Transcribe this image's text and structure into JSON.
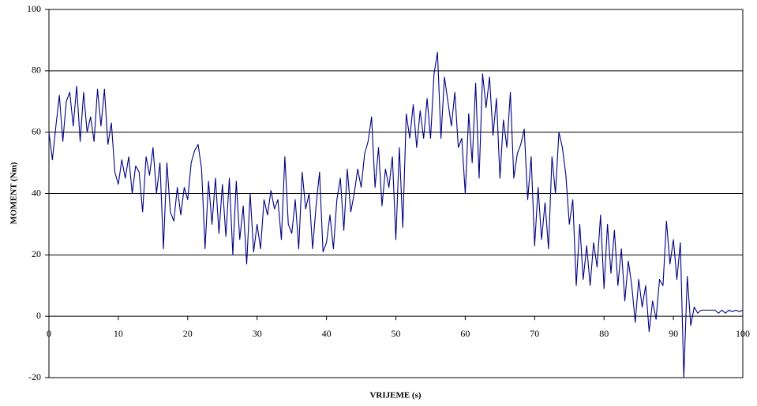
{
  "chart_data": {
    "type": "line",
    "xlabel": "VRIJEME (s)",
    "ylabel": "MOMENT (Nm)",
    "color": "#000080",
    "x": [
      0,
      0.5,
      1,
      1.5,
      2,
      2.5,
      3,
      3.5,
      4,
      4.5,
      5,
      5.5,
      6,
      6.5,
      7,
      7.5,
      8,
      8.5,
      9,
      9.5,
      10,
      10.5,
      11,
      11.5,
      12,
      12.5,
      13,
      13.5,
      14,
      14.5,
      15,
      15.5,
      16,
      16.5,
      17,
      17.5,
      18,
      18.5,
      19,
      19.5,
      20,
      20.5,
      21,
      21.5,
      22,
      22.5,
      23,
      23.5,
      24,
      24.5,
      25,
      25.5,
      26,
      26.5,
      27,
      27.5,
      28,
      28.5,
      29,
      29.5,
      30,
      30.5,
      31,
      31.5,
      32,
      32.5,
      33,
      33.5,
      34,
      34.5,
      35,
      35.5,
      36,
      36.5,
      37,
      37.5,
      38,
      38.5,
      39,
      39.5,
      40,
      40.5,
      41,
      41.5,
      42,
      42.5,
      43,
      43.5,
      44,
      44.5,
      45,
      45.5,
      46,
      46.5,
      47,
      47.5,
      48,
      48.5,
      49,
      49.5,
      50,
      50.5,
      51,
      51.5,
      52,
      52.5,
      53,
      53.5,
      54,
      54.5,
      55,
      55.5,
      56,
      56.5,
      57,
      57.5,
      58,
      58.5,
      59,
      59.5,
      60,
      60.5,
      61,
      61.5,
      62,
      62.5,
      63,
      63.5,
      64,
      64.5,
      65,
      65.5,
      66,
      66.5,
      67,
      67.5,
      68,
      68.5,
      69,
      69.5,
      70,
      70.5,
      71,
      71.5,
      72,
      72.5,
      73,
      73.5,
      74,
      74.5,
      75,
      75.5,
      76,
      76.5,
      77,
      77.5,
      78,
      78.5,
      79,
      79.5,
      80,
      80.5,
      81,
      81.5,
      82,
      82.5,
      83,
      83.5,
      84,
      84.5,
      85,
      85.5,
      86,
      86.5,
      87,
      87.5,
      88,
      88.5,
      89,
      89.5,
      90,
      90.5,
      91,
      91.5,
      92,
      92.5,
      93,
      93.5,
      94,
      94.5,
      95,
      95.5,
      96,
      96.5,
      97,
      97.5,
      98,
      98.5,
      99,
      99.5,
      100
    ],
    "values": [
      60,
      51,
      62,
      72,
      57,
      70,
      73,
      62,
      75,
      57,
      73,
      60,
      65,
      57,
      74,
      62,
      74,
      56,
      63,
      47,
      43,
      51,
      45,
      52,
      40,
      49,
      47,
      34,
      52,
      46,
      55,
      40,
      50,
      22,
      50,
      34,
      31,
      42,
      33,
      42,
      38,
      50,
      54,
      56,
      48,
      22,
      44,
      30,
      45,
      27,
      43,
      26,
      45,
      20,
      44,
      25,
      36,
      17,
      40,
      21,
      30,
      22,
      38,
      33,
      41,
      35,
      38,
      25,
      52,
      30,
      27,
      38,
      22,
      47,
      35,
      40,
      22,
      36,
      47,
      21,
      24,
      33,
      22,
      38,
      45,
      28,
      48,
      34,
      40,
      48,
      42,
      53,
      57,
      65,
      42,
      55,
      36,
      48,
      42,
      52,
      25,
      55,
      29,
      66,
      58,
      69,
      55,
      67,
      58,
      71,
      58,
      79,
      86,
      58,
      78,
      70,
      62,
      73,
      55,
      58,
      40,
      66,
      50,
      76,
      45,
      79,
      68,
      78,
      59,
      71,
      45,
      64,
      55,
      73,
      45,
      53,
      56,
      61,
      38,
      52,
      23,
      42,
      25,
      37,
      22,
      52,
      40,
      60,
      55,
      46,
      30,
      38,
      10,
      30,
      12,
      23,
      10,
      24,
      16,
      33,
      9,
      30,
      14,
      28,
      10,
      22,
      5,
      18,
      10,
      -2,
      12,
      3,
      10,
      -5,
      5,
      -1,
      12,
      10,
      31,
      17,
      25,
      12,
      24,
      -20,
      13,
      -3,
      3,
      1,
      2,
      2,
      2,
      2,
      2,
      1,
      2,
      1,
      2,
      1.5,
      2,
      1.5,
      2
    ],
    "xlim": [
      0,
      100
    ],
    "xticks": [
      0,
      10,
      20,
      30,
      40,
      50,
      60,
      70,
      80,
      90,
      100
    ],
    "ylim": [
      -20,
      100
    ],
    "yticks": [
      -20,
      0,
      20,
      40,
      60,
      80,
      100
    ],
    "grid": true
  }
}
